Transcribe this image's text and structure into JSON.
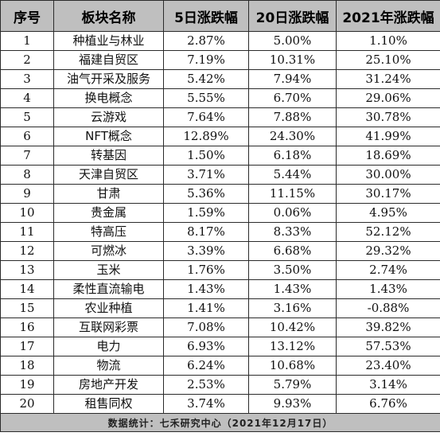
{
  "table": {
    "headers": [
      "序号",
      "板块名称",
      "5日涨跌幅",
      "20日涨跌幅",
      "2021年涨跌幅"
    ],
    "rows": [
      [
        "1",
        "种植业与林业",
        "2.87%",
        "5.00%",
        "1.10%"
      ],
      [
        "2",
        "福建自贸区",
        "7.19%",
        "10.31%",
        "25.10%"
      ],
      [
        "3",
        "油气开采及服务",
        "5.42%",
        "7.94%",
        "31.24%"
      ],
      [
        "4",
        "换电概念",
        "5.55%",
        "6.70%",
        "29.06%"
      ],
      [
        "5",
        "云游戏",
        "7.64%",
        "7.88%",
        "30.78%"
      ],
      [
        "6",
        "NFT概念",
        "12.89%",
        "24.30%",
        "41.99%"
      ],
      [
        "7",
        "转基因",
        "1.50%",
        "6.18%",
        "18.69%"
      ],
      [
        "8",
        "天津自贸区",
        "3.71%",
        "5.44%",
        "30.00%"
      ],
      [
        "9",
        "甘肃",
        "5.36%",
        "11.15%",
        "30.17%"
      ],
      [
        "10",
        "贵金属",
        "1.59%",
        "0.06%",
        "4.95%"
      ],
      [
        "11",
        "特高压",
        "8.17%",
        "8.33%",
        "52.12%"
      ],
      [
        "12",
        "可燃冰",
        "3.39%",
        "6.68%",
        "29.32%"
      ],
      [
        "13",
        "玉米",
        "1.76%",
        "3.50%",
        "2.74%"
      ],
      [
        "14",
        "柔性直流输电",
        "1.43%",
        "1.43%",
        "1.43%"
      ],
      [
        "15",
        "农业种植",
        "1.41%",
        "3.16%",
        "-0.88%"
      ],
      [
        "16",
        "互联网彩票",
        "7.08%",
        "10.42%",
        "39.82%"
      ],
      [
        "17",
        "电力",
        "6.93%",
        "13.12%",
        "57.53%"
      ],
      [
        "18",
        "物流",
        "6.24%",
        "10.68%",
        "23.40%"
      ],
      [
        "19",
        "房地产开发",
        "2.53%",
        "5.79%",
        "3.14%"
      ],
      [
        "20",
        "租售同权",
        "3.74%",
        "9.93%",
        "6.76%"
      ]
    ],
    "footer": "数据统计：七禾研究中心（2021年12月17日）"
  },
  "colors": {
    "header_bg": "#bfbfbf",
    "border": "#2b2b2b",
    "footer_bg": "#bfbfbf"
  }
}
